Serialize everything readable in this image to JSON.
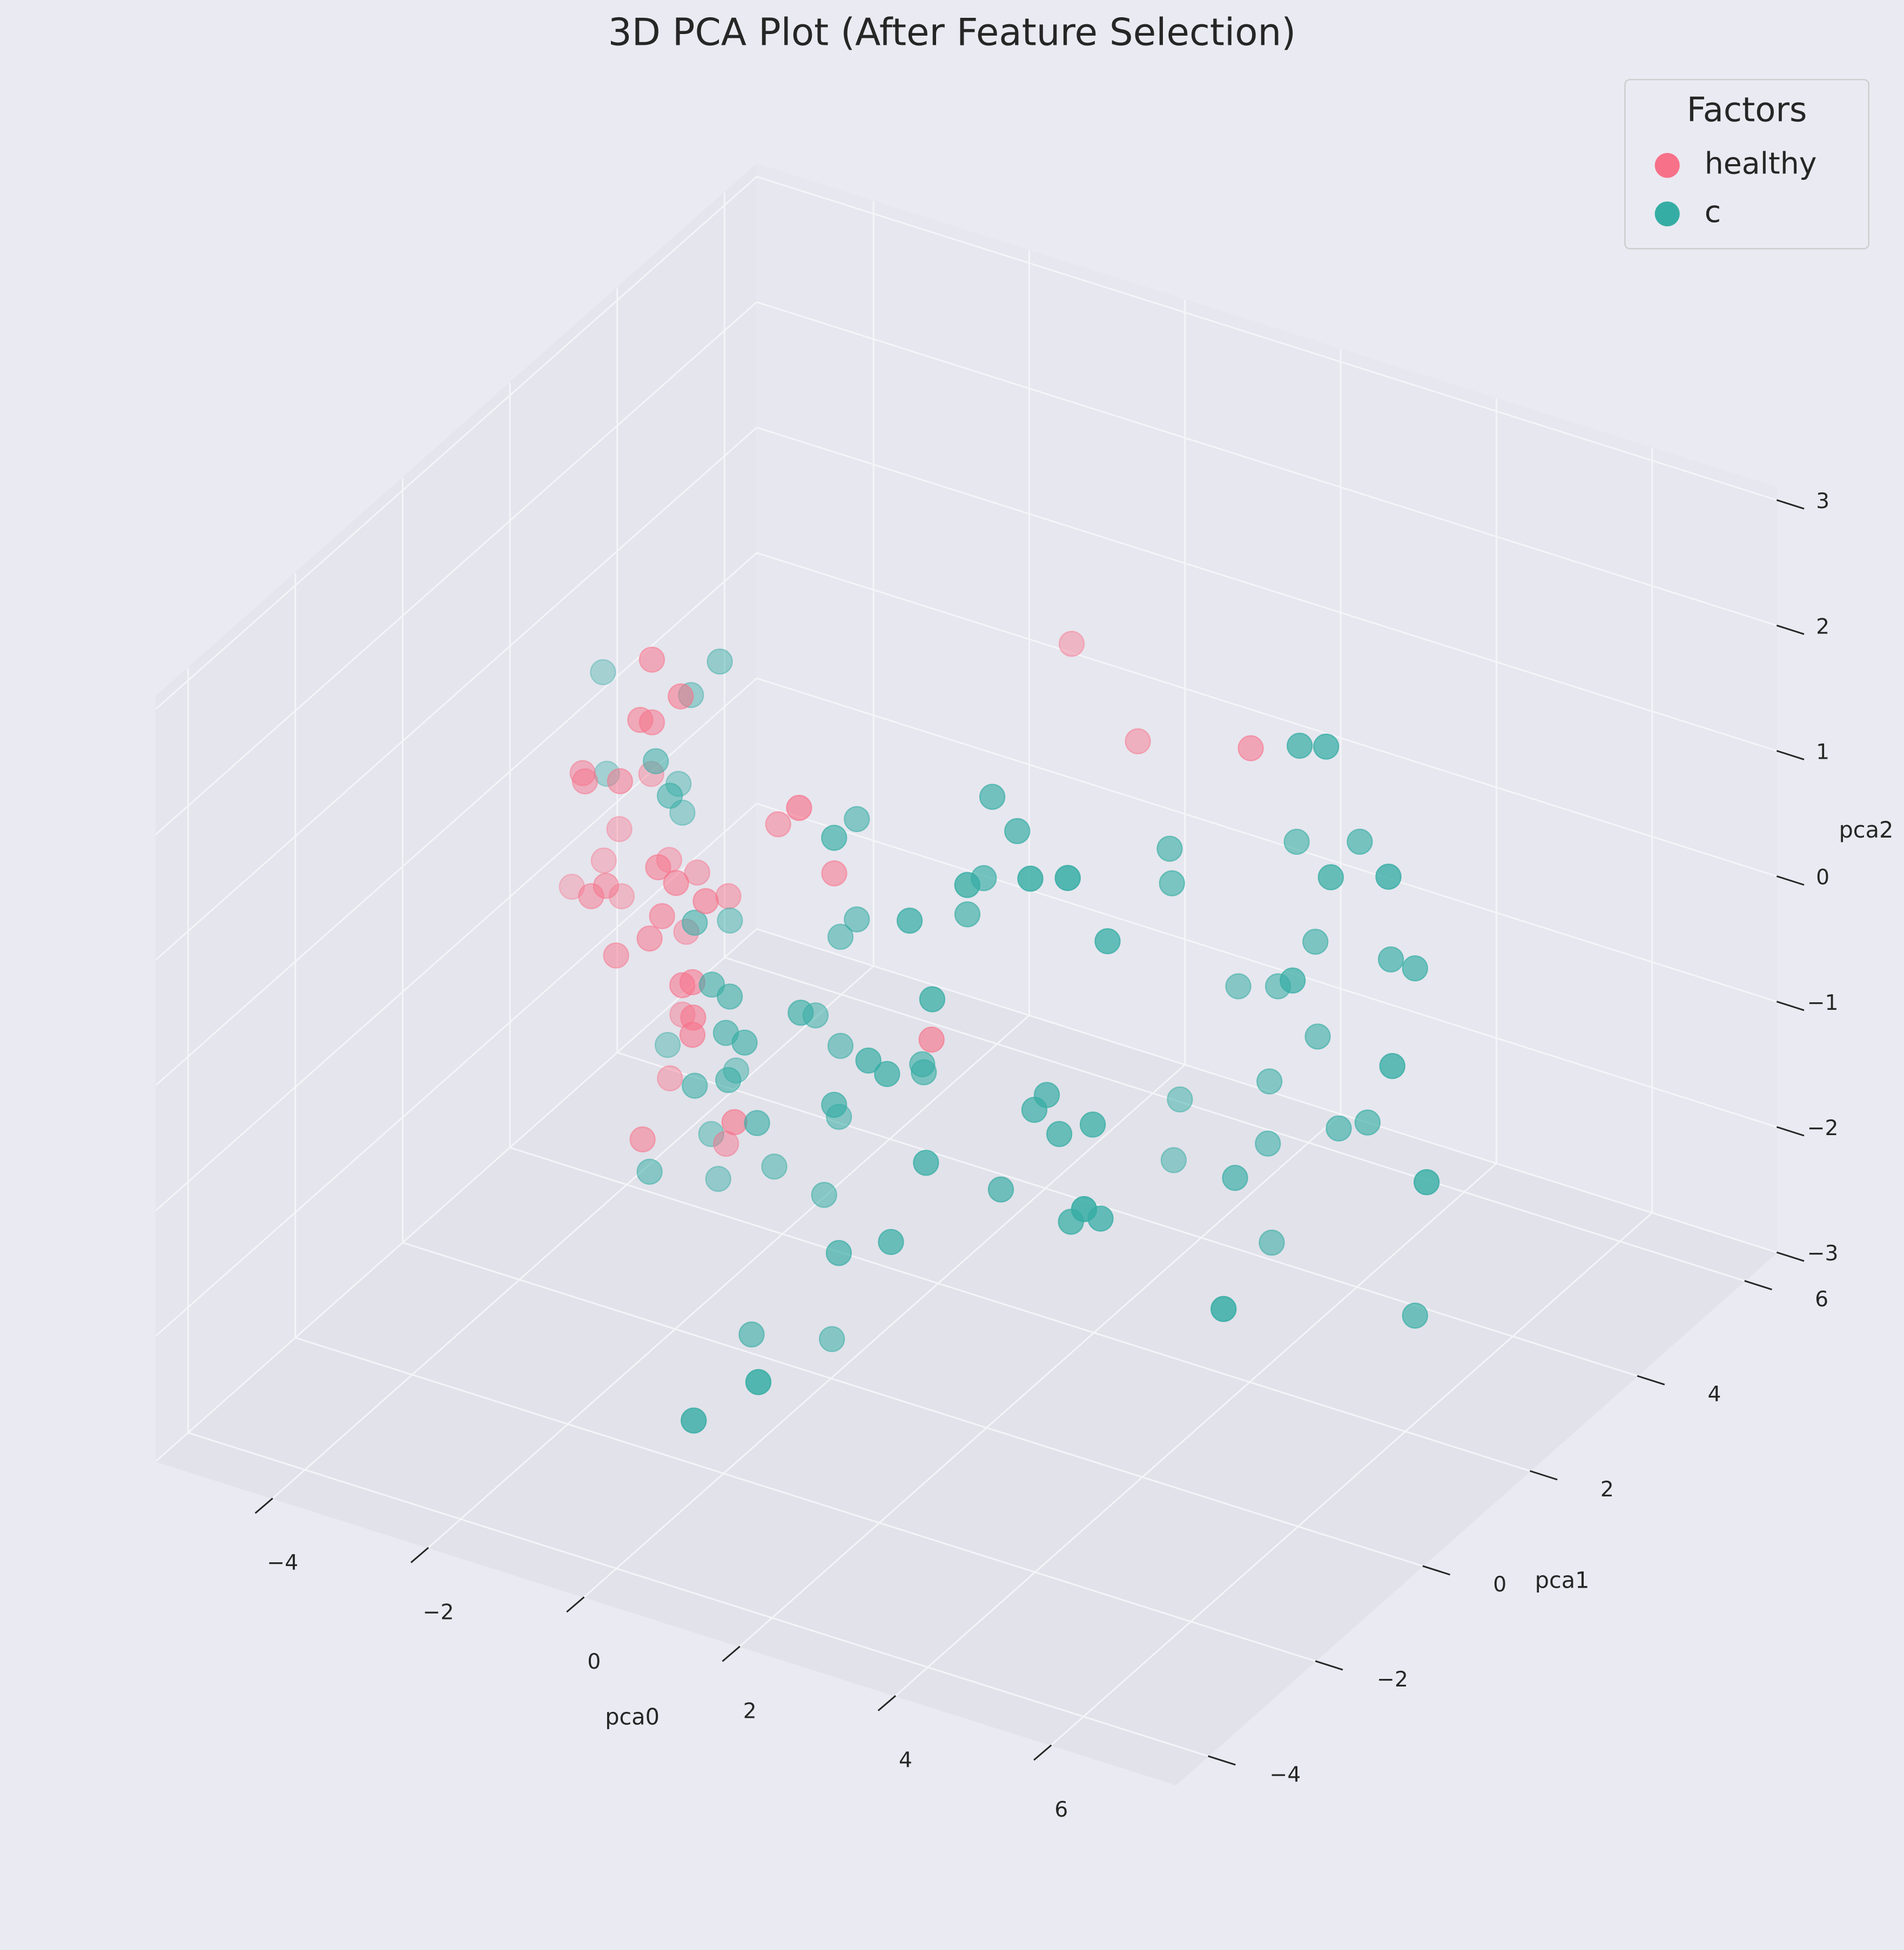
{
  "chart_data": {
    "type": "scatter3d",
    "title": "3D PCA Plot (After Feature Selection)",
    "xlabel": "pca0",
    "ylabel": "pca1",
    "zlabel": "pca2",
    "xlim": [
      -5.5,
      7.6
    ],
    "ylim": [
      -4.6,
      6.6
    ],
    "zlim": [
      -3.0,
      3.1
    ],
    "xticks": [
      {
        "value": -4,
        "label": "−4"
      },
      {
        "value": -2,
        "label": "−2"
      },
      0,
      2,
      4,
      6
    ],
    "yticks": [
      {
        "value": -4,
        "label": "−4"
      },
      {
        "value": -2,
        "label": "−2"
      },
      0,
      2,
      4,
      6
    ],
    "zticks": [
      {
        "value": -3,
        "label": "−3"
      },
      {
        "value": -2,
        "label": "−2"
      },
      {
        "value": -1,
        "label": "−1"
      },
      0,
      1,
      2,
      3
    ],
    "grid": true,
    "legend_title": "Factors",
    "legend": "upper right",
    "series": [
      {
        "name": "healthy",
        "color": "#f77189",
        "x": [
          -1.83,
          -1.46,
          -1.98,
          -1.83,
          -2.72,
          -2.69,
          -2.24,
          -2.61,
          -3.02,
          -3.22,
          -1.75,
          -2.38,
          -3.63,
          -2.61,
          -2.42,
          -2.99,
          -2.02,
          -1.52,
          -1.14,
          -1.62,
          -1.7,
          -1.86,
          -2.16,
          -2.29,
          -1.44,
          -1.31,
          -2.21,
          -1.3,
          -1.31,
          -2.37,
          -0.77,
          -1.65,
          -1.95,
          -0.98,
          0.06,
          -0.26,
          0.99,
          0.86,
          1.71,
          3.16
        ],
        "y": [
          -0.68,
          -0.68,
          -0.68,
          -0.68,
          -0.68,
          -0.68,
          -0.68,
          0.44,
          0.44,
          0.44,
          -0.68,
          0.44,
          0.44,
          -0.68,
          -0.68,
          0.44,
          0.44,
          -0.68,
          -0.68,
          0.44,
          -0.68,
          -0.68,
          0.44,
          -0.68,
          -0.68,
          -0.68,
          0.44,
          -0.68,
          -0.68,
          0.44,
          -0.68,
          0.44,
          -0.68,
          0.44,
          -0.68,
          0.44,
          0.44,
          3.24,
          3.24,
          3.24
        ],
        "z": [
          2.63,
          2.41,
          2.12,
          2.13,
          1.55,
          1.49,
          1.58,
          1.14,
          0.62,
          0.33,
          0.99,
          0.5,
          0.04,
          0.59,
          0.71,
          0.09,
          0.47,
          0.91,
          0.84,
          0.36,
          0.61,
          0.4,
          -0.03,
          0.18,
          0.11,
          0.16,
          -0.7,
          -0.12,
          -0.26,
          -1.24,
          -0.85,
          -1.62,
          -1.22,
          1.06,
          1.82,
          0.81,
          -0.27,
          1.8,
          1.19,
          1.42
        ]
      },
      {
        "name": "c",
        "color": "#36ada4",
        "x": [
          -3.23,
          -1.73,
          -2.1,
          -3.18,
          -1.78,
          -2.26,
          -1.6,
          -2.21,
          -1.28,
          -1.6,
          -1.06,
          -0.83,
          -2.4,
          -0.88,
          -0.64,
          -1.52,
          -0.85,
          -1.28,
          -1.84,
          -0.48,
          -1.86,
          -1.75,
          -1.03,
          0.08,
          -0.5,
          -0.18,
          0.95,
          1.19,
          0.87,
          0.89,
          0.51,
          -0.2,
          -0.39,
          1.69,
          0.57,
          1.24,
          -0.55,
          -0.29,
          1.08,
          0.25,
          1.88,
          2.31,
          2.47,
          2.63,
          3.06,
          3.72,
          2.78,
          3.16,
          1.77,
          2.09,
          1.45,
          2.22,
          1.66,
          3.03,
          3.51,
          3.25,
          0.51,
          0.03,
          -0.18,
          0.03,
          1.48,
          1.77,
          2.25,
          2.17,
          3.73,
          3.4,
          3.38,
          3.43,
          4.74,
          4.29,
          4.66,
          5.75,
          6.19,
          5.27,
          2.89,
          2.92,
          3.0,
          3.51,
          4.47,
          3.99,
          4.02,
          4.56,
          4.9,
          3.75,
          4.56,
          4.96,
          5.7,
          4.96,
          5.27
        ],
        "y": [
          0.44,
          0.44,
          0.44,
          0.44,
          -0.68,
          0.44,
          -0.68,
          0.44,
          -0.68,
          0.44,
          -0.68,
          -0.68,
          0.44,
          -0.68,
          -0.68,
          0.44,
          -0.68,
          -0.68,
          0.44,
          -0.68,
          -0.68,
          0.44,
          0.44,
          -0.68,
          0.44,
          0.44,
          -0.68,
          -0.68,
          0.44,
          0.44,
          -0.68,
          0.44,
          0.44,
          -0.68,
          -0.68,
          -0.68,
          -0.68,
          0.44,
          -2.92,
          -2.92,
          0.44,
          0.44,
          0.44,
          0.44,
          0.44,
          -0.68,
          0.44,
          0.44,
          0.44,
          0.44,
          0.44,
          -0.68,
          0.44,
          -0.68,
          -0.68,
          0.44,
          -0.68,
          0.44,
          0.44,
          0.44,
          -0.68,
          -0.68,
          3.24,
          3.24,
          2.12,
          3.24,
          3.24,
          3.24,
          0.44,
          3.24,
          3.24,
          2.12,
          2.12,
          3.24,
          2.12,
          2.12,
          3.24,
          3.24,
          2.12,
          3.24,
          3.24,
          2.12,
          2.12,
          3.24,
          3.24,
          2.12,
          2.12,
          3.24,
          3.24
        ],
        "z": [
          1.83,
          2.21,
          1.87,
          1.03,
          1.83,
          1.13,
          1.59,
          0.91,
          0.64,
          0.17,
          0.19,
          0.14,
          -0.98,
          -0.16,
          -0.19,
          -1.01,
          -0.53,
          -0.66,
          -1.58,
          -0.8,
          -1.46,
          -1.92,
          -1.68,
          0.19,
          -0.37,
          -0.55,
          -0.02,
          -0.08,
          -0.49,
          -0.55,
          -0.46,
          -1.12,
          -1.78,
          -0.69,
          -1.63,
          -1.41,
          -2.5,
          -2.91,
          -1.71,
          -2.18,
          -1.29,
          -0.57,
          -0.42,
          -0.7,
          -0.54,
          -0.66,
          -1.37,
          -1.27,
          1.82,
          1.61,
          0.82,
          1.63,
          1.15,
          1.84,
          1.94,
          0.96,
          1.67,
          1.3,
          0.32,
          0.5,
          1.2,
          0.63,
          -1.56,
          -2.06,
          -1.47,
          -1.19,
          -1.69,
          -2.47,
          -1.68,
          -1.39,
          -1.27,
          -0.18,
          -1.02,
          -2.69,
          0.99,
          0.72,
          -0.51,
          -0.41,
          0.25,
          0.04,
          -0.71,
          2.14,
          2.2,
          0.79,
          0.95,
          1.17,
          1.32,
          0.09,
          0.08
        ]
      }
    ]
  }
}
